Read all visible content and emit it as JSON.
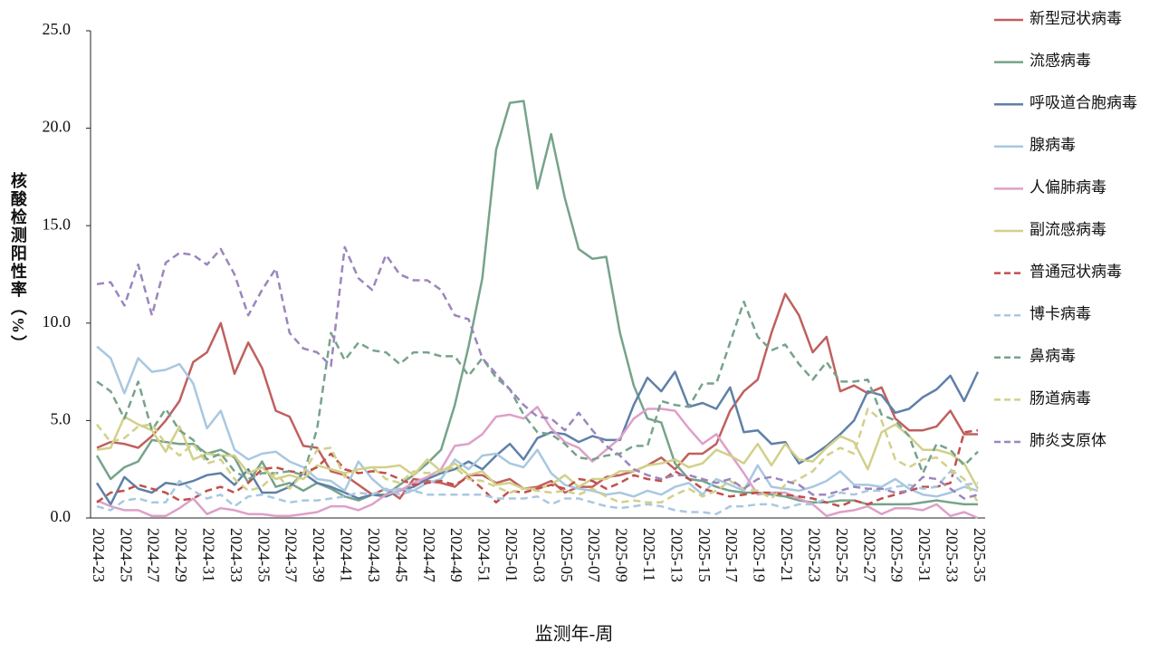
{
  "chart_data": {
    "type": "line",
    "x_label": "监测年-周",
    "y_label": "核酸检测阳性率（%）",
    "ylim": [
      0,
      25
    ],
    "yticks": [
      {
        "value": 0,
        "label": "0.0"
      },
      {
        "value": 5,
        "label": "5.0"
      },
      {
        "value": 10,
        "label": "10.0"
      },
      {
        "value": 15,
        "label": "15.0"
      },
      {
        "value": 20,
        "label": "20.0"
      },
      {
        "value": 25,
        "label": "25.0"
      }
    ],
    "legend": "right",
    "categories": [
      "2024-23",
      null,
      "2024-25",
      null,
      "2024-27",
      null,
      "2024-29",
      null,
      "2024-31",
      null,
      "2024-33",
      null,
      "2024-35",
      null,
      "2024-37",
      null,
      "2024-39",
      null,
      "2024-41",
      null,
      "2024-43",
      null,
      "2024-45",
      null,
      "2024-47",
      null,
      "2024-49",
      null,
      "2024-51",
      null,
      "2025-01",
      null,
      "2025-03",
      null,
      "2025-05",
      null,
      "2025-07",
      null,
      "2025-09",
      null,
      "2025-11",
      null,
      "2025-13",
      null,
      "2025-15",
      null,
      "2025-17",
      null,
      "2025-19",
      null,
      "2025-21",
      null,
      "2025-23",
      null,
      "2025-25",
      null,
      "2025-27",
      null,
      "2025-29",
      null,
      "2025-31",
      null,
      "2025-33",
      null,
      "2025-35"
    ],
    "series": [
      {
        "name": "新型冠状病毒",
        "color": "#c0605e",
        "dash": false,
        "values": [
          3.6,
          3.9,
          3.8,
          3.6,
          4.2,
          5.0,
          6.0,
          8.0,
          8.5,
          10.0,
          7.4,
          9.0,
          7.7,
          5.5,
          5.2,
          3.7,
          3.6,
          2.4,
          2.2,
          1.7,
          1.2,
          1.5,
          1.0,
          2.0,
          1.9,
          1.8,
          1.6,
          2.2,
          2.2,
          1.8,
          2.0,
          1.5,
          1.6,
          1.9,
          1.3,
          1.6,
          1.6,
          2.1,
          2.2,
          2.4,
          2.7,
          3.1,
          2.5,
          3.3,
          3.3,
          3.8,
          5.5,
          6.5,
          7.1,
          9.5,
          11.5,
          10.4,
          8.5,
          9.3,
          6.5,
          6.8,
          6.4,
          6.7,
          5.1,
          4.5,
          4.5,
          4.7,
          5.5,
          4.3,
          4.3
        ]
      },
      {
        "name": "流感病毒",
        "color": "#76a38a",
        "dash": false,
        "values": [
          3.2,
          2.0,
          2.6,
          2.9,
          4.0,
          3.9,
          3.8,
          3.8,
          3.3,
          3.5,
          3.1,
          1.8,
          2.9,
          1.6,
          1.8,
          1.4,
          1.8,
          1.5,
          1.1,
          0.9,
          1.2,
          1.2,
          1.7,
          2.2,
          2.8,
          3.5,
          5.8,
          8.8,
          12.3,
          18.9,
          21.3,
          21.4,
          16.9,
          19.7,
          16.4,
          13.8,
          13.3,
          13.4,
          9.5,
          6.8,
          5.1,
          4.9,
          2.8,
          2.0,
          1.9,
          1.6,
          1.4,
          1.3,
          1.3,
          1.2,
          1.1,
          0.9,
          0.8,
          0.8,
          0.9,
          0.9,
          0.7,
          0.7,
          0.7,
          0.7,
          0.8,
          0.9,
          0.8,
          0.7,
          0.7
        ]
      },
      {
        "name": "呼吸道合胞病毒",
        "color": "#5f80a8",
        "dash": false,
        "values": [
          1.8,
          0.7,
          2.1,
          1.5,
          1.3,
          1.8,
          1.7,
          1.9,
          2.2,
          2.3,
          1.7,
          2.5,
          1.3,
          1.3,
          1.6,
          2.3,
          1.8,
          1.6,
          1.3,
          1.0,
          1.2,
          1.1,
          1.4,
          1.6,
          2.0,
          2.3,
          2.5,
          2.9,
          2.5,
          3.2,
          3.8,
          3.0,
          4.1,
          4.4,
          4.3,
          3.9,
          4.2,
          4.0,
          4.0,
          5.8,
          7.2,
          6.5,
          7.5,
          5.7,
          5.9,
          5.6,
          6.7,
          4.4,
          4.5,
          3.8,
          3.9,
          2.8,
          3.2,
          3.7,
          4.3,
          5.0,
          6.5,
          6.3,
          5.4,
          5.6,
          6.2,
          6.6,
          7.3,
          6.0,
          7.5
        ]
      },
      {
        "name": "腺病毒",
        "color": "#a8c8e0",
        "dash": false,
        "values": [
          8.8,
          8.2,
          6.4,
          8.2,
          7.5,
          7.6,
          7.9,
          6.9,
          4.6,
          5.5,
          3.5,
          3.0,
          3.3,
          3.4,
          2.9,
          2.6,
          2.0,
          1.9,
          1.4,
          2.9,
          2.0,
          1.4,
          1.5,
          1.4,
          1.8,
          2.0,
          3.0,
          2.5,
          3.2,
          3.3,
          2.8,
          2.6,
          3.5,
          2.3,
          1.7,
          1.5,
          1.4,
          1.2,
          1.3,
          1.1,
          1.4,
          1.2,
          1.6,
          1.8,
          1.2,
          2.0,
          1.7,
          1.4,
          2.7,
          1.6,
          1.5,
          1.4,
          1.6,
          1.9,
          2.4,
          1.7,
          1.7,
          1.6,
          2.0,
          1.5,
          1.2,
          1.1,
          1.3,
          1.6,
          1.4
        ]
      },
      {
        "name": "人偏肺病毒",
        "color": "#dda0c8",
        "dash": false,
        "values": [
          0.9,
          0.6,
          0.4,
          0.4,
          0.1,
          0.1,
          0.5,
          1.0,
          0.2,
          0.5,
          0.4,
          0.2,
          0.2,
          0.1,
          0.1,
          0.2,
          0.3,
          0.6,
          0.6,
          0.4,
          0.7,
          1.2,
          1.4,
          1.8,
          2.1,
          2.5,
          3.7,
          3.8,
          4.3,
          5.2,
          5.3,
          5.1,
          5.7,
          4.6,
          3.9,
          3.6,
          2.9,
          3.5,
          4.1,
          5.1,
          5.6,
          5.6,
          5.5,
          4.6,
          3.8,
          4.3,
          3.3,
          2.3,
          1.2,
          1.3,
          1.3,
          1.0,
          0.7,
          0.1,
          0.3,
          0.4,
          0.6,
          0.2,
          0.5,
          0.5,
          0.4,
          0.7,
          0.1,
          0.3,
          0.0
        ]
      },
      {
        "name": "副流感病毒",
        "color": "#d2d08a",
        "dash": false,
        "values": [
          3.5,
          3.6,
          5.2,
          4.8,
          4.5,
          3.4,
          4.7,
          3.0,
          3.3,
          3.2,
          3.2,
          2.3,
          2.6,
          2.0,
          2.2,
          2.0,
          2.7,
          2.5,
          2.3,
          2.5,
          2.6,
          2.6,
          2.7,
          2.2,
          3.0,
          2.4,
          2.8,
          2.2,
          2.4,
          1.7,
          1.8,
          1.5,
          1.5,
          1.7,
          2.2,
          1.6,
          2.0,
          2.0,
          2.4,
          2.4,
          2.7,
          2.8,
          3.0,
          2.6,
          2.8,
          3.5,
          3.2,
          2.8,
          3.8,
          2.7,
          3.8,
          3.0,
          2.9,
          3.6,
          4.2,
          3.9,
          2.5,
          4.4,
          4.8,
          4.2,
          3.5,
          3.5,
          3.3,
          2.8,
          1.5
        ]
      },
      {
        "name": "普通冠状病毒",
        "color": "#c0504d",
        "dash": true,
        "values": [
          0.8,
          1.3,
          1.4,
          1.7,
          1.5,
          1.3,
          0.9,
          1.0,
          1.4,
          1.6,
          1.3,
          1.8,
          2.5,
          2.6,
          2.4,
          2.3,
          2.6,
          3.3,
          2.5,
          2.3,
          2.4,
          2.3,
          2.0,
          1.7,
          1.8,
          1.9,
          1.7,
          2.1,
          1.5,
          0.8,
          1.4,
          1.3,
          1.5,
          1.7,
          1.5,
          2.0,
          1.9,
          1.5,
          1.8,
          2.2,
          2.0,
          1.9,
          2.4,
          2.0,
          1.5,
          1.3,
          1.1,
          1.2,
          1.3,
          1.3,
          1.2,
          1.1,
          1.0,
          0.8,
          0.6,
          0.9,
          0.7,
          1.0,
          1.2,
          1.4,
          1.6,
          1.6,
          1.8,
          4.4,
          4.5
        ]
      },
      {
        "name": "博卡病毒",
        "color": "#a8c8e0",
        "dash": true,
        "values": [
          0.6,
          0.4,
          0.9,
          1.0,
          0.8,
          0.8,
          1.9,
          1.4,
          1.0,
          1.2,
          0.6,
          1.1,
          1.2,
          1.0,
          0.8,
          0.9,
          0.9,
          1.0,
          1.1,
          1.3,
          1.2,
          1.5,
          1.2,
          1.4,
          1.2,
          1.2,
          1.2,
          1.2,
          1.2,
          1.0,
          1.0,
          1.0,
          1.1,
          0.7,
          1.0,
          1.0,
          0.8,
          0.6,
          0.5,
          0.6,
          0.7,
          0.6,
          0.4,
          0.3,
          0.3,
          0.2,
          0.6,
          0.6,
          0.7,
          0.7,
          0.5,
          0.7,
          0.7,
          1.0,
          1.3,
          1.2,
          1.4,
          1.4,
          1.6,
          1.7,
          1.5,
          1.6,
          2.4,
          1.7,
          1.8
        ]
      },
      {
        "name": "鼻病毒",
        "color": "#76a38a",
        "dash": true,
        "values": [
          7.0,
          6.5,
          5.1,
          7.0,
          4.5,
          5.6,
          4.5,
          4.0,
          3.0,
          3.3,
          2.4,
          2.0,
          2.3,
          2.3,
          2.4,
          2.2,
          4.6,
          9.5,
          8.1,
          9.0,
          8.6,
          8.5,
          7.9,
          8.5,
          8.5,
          8.3,
          8.3,
          7.3,
          8.2,
          7.2,
          6.6,
          5.3,
          4.4,
          4.3,
          3.8,
          3.1,
          3.0,
          3.2,
          3.3,
          3.7,
          3.7,
          6.0,
          5.8,
          5.7,
          6.9,
          6.9,
          9.0,
          11.1,
          9.3,
          8.6,
          8.9,
          7.9,
          7.1,
          8.0,
          7.0,
          7.0,
          7.1,
          5.3,
          5.0,
          4.2,
          2.3,
          3.8,
          3.5,
          2.7,
          3.4
        ]
      },
      {
        "name": "肠道病毒",
        "color": "#d2d08a",
        "dash": true,
        "values": [
          4.8,
          3.9,
          4.1,
          4.7,
          4.8,
          3.8,
          3.2,
          3.8,
          2.8,
          3.0,
          2.0,
          1.4,
          1.6,
          2.3,
          1.5,
          2.3,
          3.5,
          3.6,
          2.1,
          2.5,
          2.6,
          2.0,
          1.8,
          2.4,
          2.3,
          2.4,
          2.6,
          2.0,
          1.9,
          1.6,
          1.3,
          1.5,
          1.4,
          1.3,
          1.4,
          1.2,
          1.5,
          1.1,
          0.8,
          0.9,
          0.8,
          0.8,
          1.2,
          1.5,
          1.1,
          1.4,
          1.9,
          1.5,
          1.4,
          1.0,
          1.7,
          2.0,
          2.4,
          3.2,
          3.6,
          3.3,
          5.6,
          5.0,
          3.0,
          2.6,
          3.0,
          3.1,
          2.5,
          2.0,
          0.8
        ]
      },
      {
        "name": "肺炎支原体",
        "color": "#9b86bd",
        "dash": true,
        "values": [
          12.0,
          12.1,
          10.9,
          13.0,
          10.4,
          13.1,
          13.6,
          13.5,
          13.0,
          13.8,
          12.5,
          10.4,
          11.7,
          12.8,
          9.5,
          8.7,
          8.5,
          7.8,
          13.9,
          12.3,
          11.7,
          13.5,
          12.5,
          12.2,
          12.2,
          11.7,
          10.4,
          10.2,
          8.2,
          7.4,
          6.6,
          5.8,
          5.2,
          5.1,
          4.5,
          5.4,
          4.5,
          3.7,
          3.2,
          2.5,
          2.2,
          2.0,
          2.2,
          2.2,
          2.0,
          1.8,
          2.0,
          1.5,
          2.0,
          2.1,
          1.9,
          1.7,
          1.2,
          1.2,
          1.4,
          1.6,
          1.5,
          1.5,
          1.3,
          1.4,
          2.1,
          2.0,
          1.5,
          1.0,
          1.2
        ]
      }
    ]
  }
}
